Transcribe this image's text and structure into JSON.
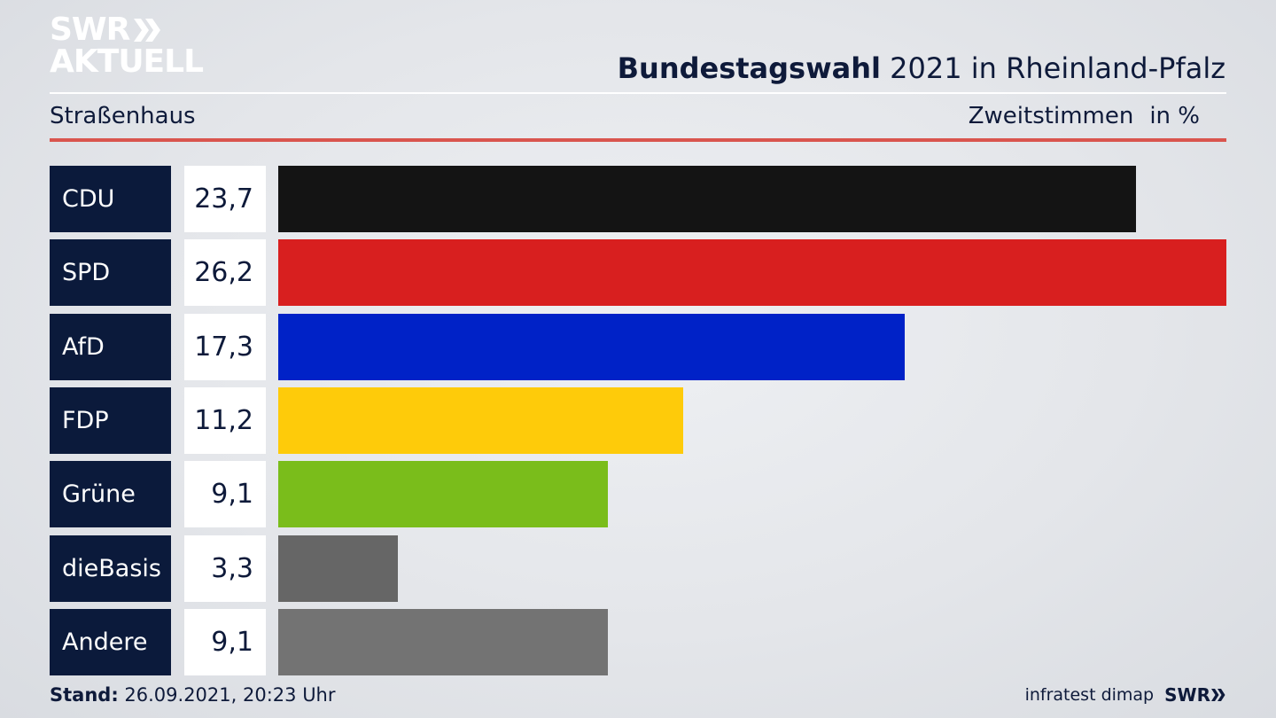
{
  "logo": {
    "line1": "SWR",
    "line2": "AKTUELL"
  },
  "header": {
    "title_bold": "Bundestagswahl",
    "title_rest": "2021 in Rheinland-Pfalz"
  },
  "subheader": {
    "district": "Straßenhaus",
    "metric": "Zweitstimmen",
    "unit": "in %"
  },
  "chart_data": {
    "type": "bar",
    "orientation": "horizontal",
    "categories": [
      "CDU",
      "SPD",
      "AfD",
      "FDP",
      "Grüne",
      "dieBasis",
      "Andere"
    ],
    "values": [
      23.7,
      26.2,
      17.3,
      11.2,
      9.1,
      3.3,
      9.1
    ],
    "labels": [
      "23,7",
      "26,2",
      "17,3",
      "11,2",
      "9,1",
      "3,3",
      "9,1"
    ],
    "colors": [
      "#141414",
      "#d81f1f",
      "#0022c7",
      "#fecb0a",
      "#7abd1b",
      "#666666",
      "#737373"
    ],
    "xlim": [
      0,
      26.2
    ]
  },
  "footer": {
    "stand_label": "Stand:",
    "stand_value": "26.09.2021, 20:23 Uhr",
    "source": "infratest dimap",
    "brand": "SWR"
  }
}
